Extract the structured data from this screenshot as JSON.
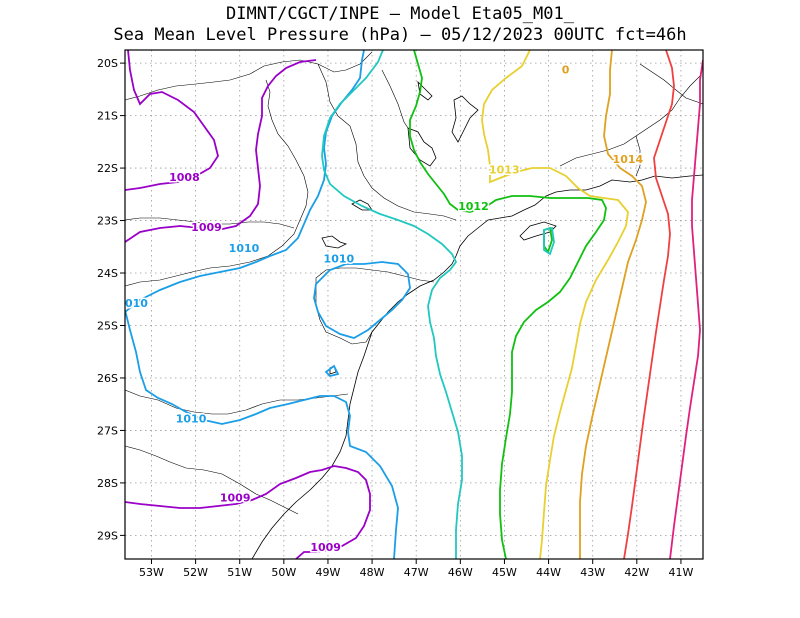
{
  "title": {
    "line1": "DIMNT/CGCT/INPE –  Model Eta05_M01_",
    "line2": "Sea Mean Level Pressure (hPa) – 05/12/2023 00UTC fct=46h"
  },
  "map": {
    "lon_range": [
      -53.6,
      -40.5
    ],
    "lat_range": [
      -29.45,
      -19.75
    ],
    "lon_ticks": [
      -53,
      -52,
      -51,
      -50,
      -49,
      -48,
      -47,
      -46,
      -45,
      -44,
      -43,
      -42,
      -41
    ],
    "lon_tick_labels": [
      "53W",
      "52W",
      "51W",
      "50W",
      "49W",
      "48W",
      "47W",
      "46W",
      "45W",
      "44W",
      "43W",
      "42W",
      "41W"
    ],
    "lat_ticks": [
      -20,
      -21,
      -22,
      -23,
      -24,
      -25,
      -26,
      -27,
      -28,
      -29
    ],
    "lat_tick_labels": [
      "20S",
      "21S",
      "22S",
      "23S",
      "24S",
      "25S",
      "26S",
      "27S",
      "28S",
      "29S"
    ]
  },
  "contour_labels": [
    {
      "text": "1008",
      "lon": -52.6,
      "lat": -22.25,
      "color": "#9a00c8"
    },
    {
      "text": "1009",
      "lon": -52.1,
      "lat": -23.2,
      "color": "#9a00c8"
    },
    {
      "text": "1010",
      "lon": -51.25,
      "lat": -23.6,
      "color": "#1a9ee8"
    },
    {
      "text": "1010",
      "lon": -49.1,
      "lat": -23.8,
      "color": "#1a9ee8"
    },
    {
      "text": "010",
      "lon": -53.6,
      "lat": -24.65,
      "color": "#1a9ee8"
    },
    {
      "text": "1010",
      "lon": -52.45,
      "lat": -26.85,
      "color": "#1a9ee8"
    },
    {
      "text": "1009",
      "lon": -51.45,
      "lat": -28.35,
      "color": "#9a00c8"
    },
    {
      "text": "1009",
      "lon": -49.4,
      "lat": -29.3,
      "color": "#9a00c8"
    },
    {
      "text": "1012",
      "lon": -46.05,
      "lat": -22.8,
      "color": "#10c010"
    },
    {
      "text": "1013",
      "lon": -45.35,
      "lat": -22.1,
      "color": "#e8d030"
    },
    {
      "text": "1014",
      "lon": -42.55,
      "lat": -21.9,
      "color": "#e0a020"
    },
    {
      "text": "0",
      "lon": -43.7,
      "lat": -20.2,
      "color": "#e0a020"
    }
  ]
}
